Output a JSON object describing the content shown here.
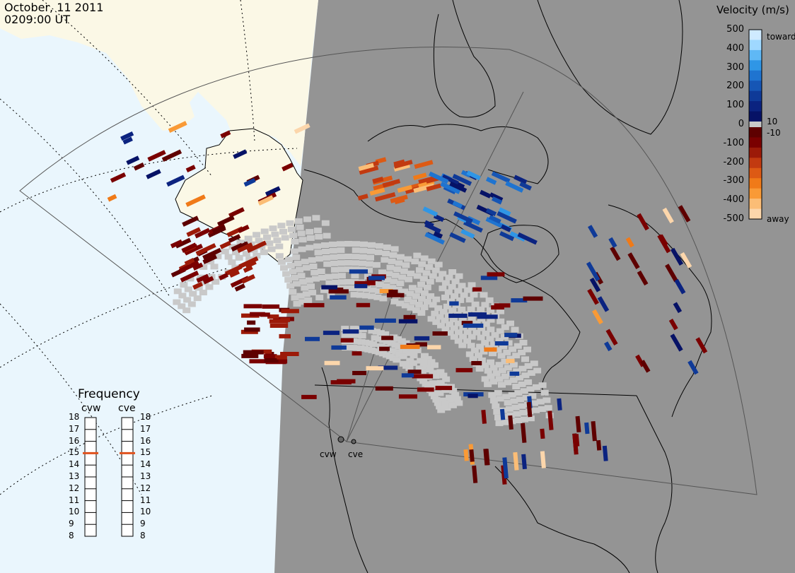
{
  "header": {
    "date": "October, 11 2011",
    "time": "0209:00 UT"
  },
  "frequency_panel": {
    "title": "Frequency",
    "radars": [
      {
        "name": "cvw",
        "selected": 15
      },
      {
        "name": "cve",
        "selected": 15
      }
    ],
    "scale": [
      18,
      17,
      16,
      15,
      14,
      13,
      12,
      11,
      10,
      9,
      8
    ],
    "marker_color": "#e0521e"
  },
  "velocity_legend": {
    "title": "Velocity (m/s)",
    "ticks": [
      "500",
      "400",
      "300",
      "200",
      "100",
      "0",
      "-100",
      "-200",
      "-300",
      "-400",
      "-500"
    ],
    "toward_label": "toward",
    "away_label": "away",
    "inner_labels": [
      "10",
      "-10"
    ],
    "colors_toward": [
      "#cfeaff",
      "#9fd8ff",
      "#5fb8f5",
      "#2f96e6",
      "#1f74d0",
      "#1656b5",
      "#0f3a98",
      "#0b2380",
      "#061266"
    ],
    "colors_away": [
      "#5e0000",
      "#7a0000",
      "#9c1a08",
      "#c23a10",
      "#dd5a14",
      "#f07a18",
      "#f99a36",
      "#fbbd76",
      "#fcd6ab"
    ],
    "ground_scatter_color": "#c9c9c9"
  },
  "map": {
    "sites": [
      "cvw",
      "cve"
    ],
    "colors": {
      "ocean": "#eaf6fd",
      "night": "#949494",
      "land_day": "#fbf8e6",
      "ground_scatter": "#c9c9c9"
    }
  }
}
